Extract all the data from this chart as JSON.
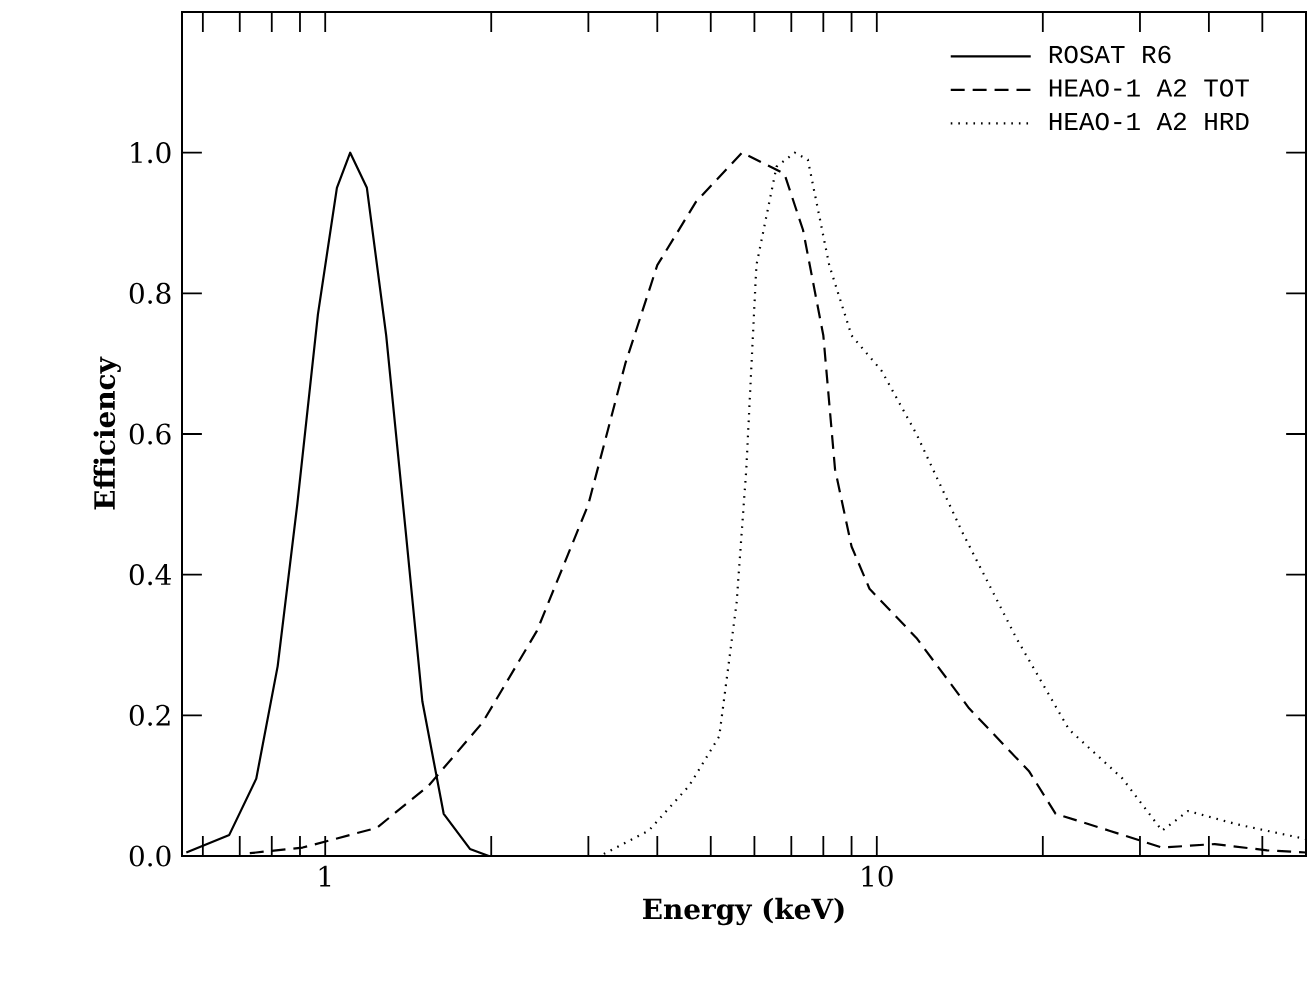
{
  "chart_data": {
    "type": "line",
    "xlabel": "Energy (keV)",
    "ylabel": "Efficiency",
    "log": "x",
    "xlim": [
      0.55,
      60
    ],
    "ylim": [
      0,
      1.2
    ],
    "xticks": [
      {
        "value": 0.6,
        "label": null
      },
      {
        "value": 0.7,
        "label": null
      },
      {
        "value": 0.8,
        "label": null
      },
      {
        "value": 0.9,
        "label": null
      },
      1,
      {
        "value": 2,
        "label": null
      },
      {
        "value": 3,
        "label": null
      },
      {
        "value": 4,
        "label": null
      },
      {
        "value": 5,
        "label": null
      },
      {
        "value": 6,
        "label": null
      },
      {
        "value": 7,
        "label": null
      },
      {
        "value": 8,
        "label": null
      },
      {
        "value": 9,
        "label": null
      },
      10,
      {
        "value": 20,
        "label": null
      },
      {
        "value": 30,
        "label": null
      },
      {
        "value": 40,
        "label": null
      },
      {
        "value": 50,
        "label": null
      },
      {
        "value": 60,
        "label": null
      }
    ],
    "yticks": [
      {
        "value": 0,
        "label": "0.0"
      },
      0.2,
      0.4,
      0.6,
      0.8,
      {
        "value": 1,
        "label": "1.0"
      }
    ],
    "legend": "top right",
    "grid": false,
    "marker": "none",
    "series": [
      {
        "name": "ROSAT R6",
        "color": "#000000",
        "line_style": "solid",
        "x": [
          0.56,
          0.67,
          0.75,
          0.82,
          0.89,
          0.97,
          1.05,
          1.11,
          1.19,
          1.29,
          1.4,
          1.5,
          1.64,
          1.83,
          1.98,
          3.0
        ],
        "values": [
          0.005,
          0.03,
          0.11,
          0.27,
          0.5,
          0.77,
          0.95,
          1.0,
          0.95,
          0.74,
          0.46,
          0.22,
          0.06,
          0.01,
          0.0,
          0.0
        ]
      },
      {
        "name": "HEAO-1 A2 TOT",
        "color": "#000000",
        "line_style": "dashed",
        "x": [
          0.73,
          0.91,
          1.24,
          1.54,
          1.93,
          2.42,
          3.0,
          3.5,
          4.0,
          4.7,
          5.7,
          6.8,
          7.35,
          8.0,
          8.4,
          9.0,
          9.7,
          11.8,
          14.7,
          18.9,
          21.1,
          26.4,
          32.9,
          41,
          51,
          60
        ],
        "values": [
          0.004,
          0.012,
          0.04,
          0.1,
          0.19,
          0.32,
          0.5,
          0.7,
          0.84,
          0.93,
          1.0,
          0.97,
          0.89,
          0.74,
          0.55,
          0.44,
          0.38,
          0.31,
          0.21,
          0.12,
          0.06,
          0.036,
          0.012,
          0.017,
          0.008,
          0.005
        ]
      },
      {
        "name": "HEAO-1 A2 HRD",
        "color": "#000000",
        "line_style": "dotted",
        "x": [
          3.2,
          3.86,
          4.57,
          5.18,
          5.57,
          5.8,
          6.05,
          6.58,
          7.1,
          7.5,
          8.2,
          9.0,
          10.2,
          11.8,
          14.3,
          17.9,
          22.3,
          27.9,
          32.9,
          36.7,
          45,
          60
        ],
        "values": [
          0.003,
          0.036,
          0.1,
          0.17,
          0.36,
          0.55,
          0.84,
          0.98,
          1.0,
          0.99,
          0.84,
          0.74,
          0.69,
          0.6,
          0.46,
          0.31,
          0.18,
          0.11,
          0.036,
          0.064,
          0.045,
          0.024
        ]
      }
    ]
  }
}
